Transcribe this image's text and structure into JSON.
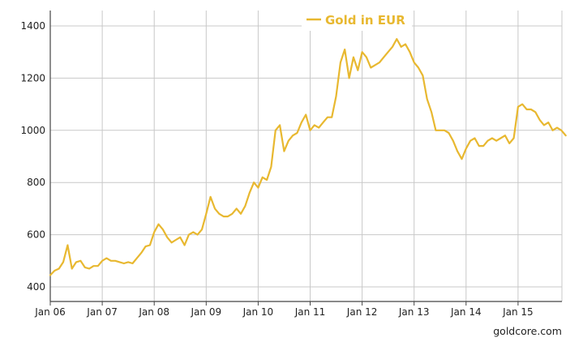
{
  "chart_data": {
    "type": "line",
    "title": "",
    "xlabel": "",
    "ylabel": "",
    "x_tick_labels": [
      "Jan 06",
      "Jan 07",
      "Jan 08",
      "Jan 09",
      "Jan 10",
      "Jan 11",
      "Jan 12",
      "Jan 13",
      "Jan 14",
      "Jan 15"
    ],
    "y_ticks": [
      400,
      600,
      800,
      1000,
      1200,
      1400
    ],
    "ylim": [
      340,
      1450
    ],
    "xlim": [
      "2006-01",
      "2016-01"
    ],
    "grid": true,
    "legend_position": "top-center",
    "series": [
      {
        "name": "Gold in EUR",
        "color": "#e8b830",
        "x": [
          "2006-01",
          "2006-02",
          "2006-03",
          "2006-04",
          "2006-05",
          "2006-06",
          "2006-07",
          "2006-08",
          "2006-09",
          "2006-10",
          "2006-11",
          "2006-12",
          "2007-01",
          "2007-02",
          "2007-03",
          "2007-04",
          "2007-05",
          "2007-06",
          "2007-07",
          "2007-08",
          "2007-09",
          "2007-10",
          "2007-11",
          "2007-12",
          "2008-01",
          "2008-02",
          "2008-03",
          "2008-04",
          "2008-05",
          "2008-06",
          "2008-07",
          "2008-08",
          "2008-09",
          "2008-10",
          "2008-11",
          "2008-12",
          "2009-01",
          "2009-02",
          "2009-03",
          "2009-04",
          "2009-05",
          "2009-06",
          "2009-07",
          "2009-08",
          "2009-09",
          "2009-10",
          "2009-11",
          "2009-12",
          "2010-01",
          "2010-02",
          "2010-03",
          "2010-04",
          "2010-05",
          "2010-06",
          "2010-07",
          "2010-08",
          "2010-09",
          "2010-10",
          "2010-11",
          "2010-12",
          "2011-01",
          "2011-02",
          "2011-03",
          "2011-04",
          "2011-05",
          "2011-06",
          "2011-07",
          "2011-08",
          "2011-09",
          "2011-10",
          "2011-11",
          "2011-12",
          "2012-01",
          "2012-02",
          "2012-03",
          "2012-04",
          "2012-05",
          "2012-06",
          "2012-07",
          "2012-08",
          "2012-09",
          "2012-10",
          "2012-11",
          "2012-12",
          "2013-01",
          "2013-02",
          "2013-03",
          "2013-04",
          "2013-05",
          "2013-06",
          "2013-07",
          "2013-08",
          "2013-09",
          "2013-10",
          "2013-11",
          "2013-12",
          "2014-01",
          "2014-02",
          "2014-03",
          "2014-04",
          "2014-05",
          "2014-06",
          "2014-07",
          "2014-08",
          "2014-09",
          "2014-10",
          "2014-11",
          "2014-12",
          "2015-01",
          "2015-02",
          "2015-03",
          "2015-04",
          "2015-05",
          "2015-06",
          "2015-07",
          "2015-08",
          "2015-09",
          "2015-10",
          "2015-11",
          "2015-12"
        ],
        "values": [
          445,
          462,
          470,
          495,
          560,
          470,
          495,
          500,
          475,
          470,
          480,
          480,
          500,
          510,
          500,
          500,
          495,
          490,
          495,
          490,
          510,
          530,
          555,
          560,
          610,
          640,
          620,
          590,
          570,
          580,
          590,
          560,
          600,
          610,
          600,
          620,
          680,
          745,
          700,
          680,
          670,
          670,
          680,
          700,
          680,
          710,
          760,
          800,
          780,
          820,
          810,
          860,
          1000,
          1020,
          920,
          960,
          980,
          990,
          1030,
          1060,
          1000,
          1020,
          1010,
          1030,
          1050,
          1050,
          1130,
          1260,
          1310,
          1200,
          1280,
          1230,
          1300,
          1280,
          1240,
          1250,
          1260,
          1280,
          1300,
          1320,
          1350,
          1320,
          1330,
          1300,
          1260,
          1240,
          1210,
          1120,
          1070,
          1000,
          1000,
          1000,
          990,
          960,
          920,
          890,
          930,
          960,
          970,
          940,
          940,
          960,
          970,
          960,
          970,
          980,
          950,
          970,
          1090,
          1100,
          1080,
          1080,
          1070,
          1040,
          1020,
          1030,
          1000,
          1010,
          1000,
          980
        ]
      }
    ]
  },
  "source_label": "goldcore.com"
}
